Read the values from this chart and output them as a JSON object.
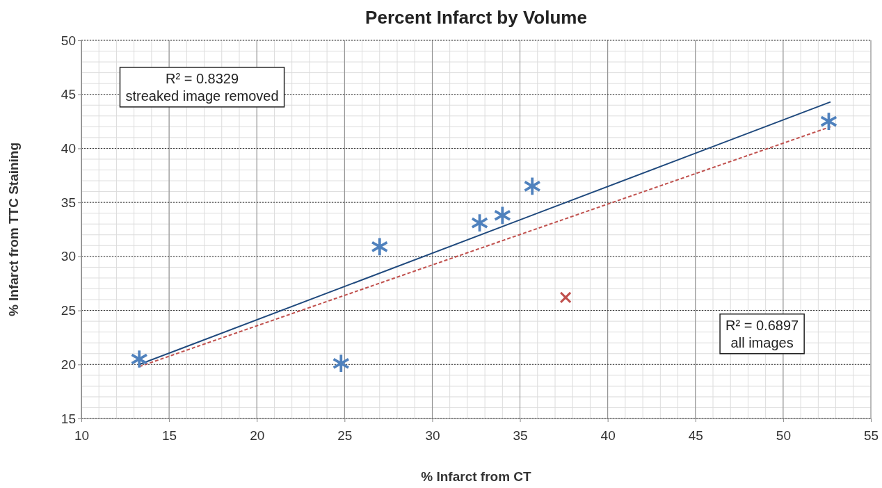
{
  "chart_data": {
    "type": "scatter",
    "title": "Percent Infarct by Volume",
    "xlabel": "% Infarct from CT",
    "ylabel": "% Infarct from TTC Staining",
    "xlim": [
      10,
      55
    ],
    "xticks": [
      10,
      15,
      20,
      25,
      30,
      35,
      40,
      45,
      50,
      55
    ],
    "ylim": [
      15,
      50
    ],
    "yticks": [
      15,
      20,
      25,
      30,
      35,
      40,
      45,
      50
    ],
    "grid": true,
    "annotations": [
      "R² = 0.8329\nstreaked image removed",
      "R² = 0.6897\nall images"
    ],
    "series": [
      {
        "color": "#4f81bd",
        "x": [
          13.3,
          24.8,
          27.0,
          32.7,
          34.0,
          35.7,
          52.6
        ],
        "values": [
          20.5,
          20.1,
          30.9,
          33.1,
          33.8,
          36.5,
          42.5
        ]
      },
      {
        "color": "#c0504d",
        "marker": "cross",
        "x": [
          37.6
        ],
        "values": [
          26.2
        ]
      },
      {
        "type": "line",
        "color": "#1f497d",
        "line_style": "solid",
        "x": [
          13.3,
          52.7
        ],
        "values": [
          20.0,
          44.3
        ]
      },
      {
        "type": "line",
        "color": "#c0504d",
        "line_style": "dashed",
        "x": [
          13.3,
          52.7
        ],
        "values": [
          19.8,
          42.0
        ]
      }
    ]
  }
}
